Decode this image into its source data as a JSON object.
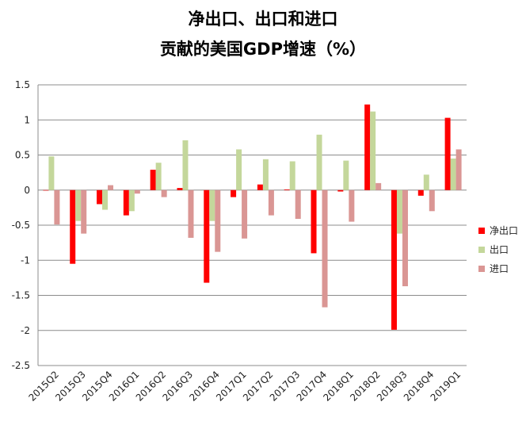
{
  "chart_data": {
    "type": "bar",
    "title": "净出口、出口和进口",
    "subtitle": "贡献的美国GDP增速（%）",
    "xlabel": "",
    "ylabel": "",
    "categories": [
      "2015Q2",
      "2015Q3",
      "2015Q4",
      "2016Q1",
      "2016Q2",
      "2016Q3",
      "2016Q4",
      "2017Q1",
      "2017Q2",
      "2017Q3",
      "2017Q4",
      "2018Q1",
      "2018Q2",
      "2018Q3",
      "2018Q4",
      "2019Q1"
    ],
    "ylim": [
      -2.5,
      1.5
    ],
    "yticks": [
      1.5,
      1,
      0.5,
      0,
      -0.5,
      -1,
      -1.5,
      -2,
      -2.5
    ],
    "ytick_labels": [
      "1.5",
      "1",
      "0.5",
      "0",
      "-0.5",
      "-1",
      "-1.5",
      "-2",
      "-2.5"
    ],
    "grid": true,
    "legend_position": "right",
    "series": [
      {
        "name": "净出口",
        "color": "#ff0000",
        "values": [
          0.0,
          -1.05,
          -0.2,
          -0.36,
          0.29,
          0.03,
          -1.32,
          -0.1,
          0.08,
          0.01,
          -0.9,
          -0.02,
          1.22,
          -1.99,
          -0.08,
          1.03
        ]
      },
      {
        "name": "出口",
        "color": "#c4d79b",
        "values": [
          0.48,
          -0.44,
          -0.28,
          -0.3,
          0.39,
          0.71,
          -0.44,
          0.58,
          0.44,
          0.41,
          0.79,
          0.42,
          1.12,
          -0.62,
          0.22,
          0.45
        ]
      },
      {
        "name": "进口",
        "color": "#da9694",
        "values": [
          -0.49,
          -0.62,
          0.07,
          -0.05,
          -0.1,
          -0.68,
          -0.88,
          -0.69,
          -0.36,
          -0.41,
          -1.67,
          -0.45,
          0.1,
          -1.37,
          -0.3,
          0.58
        ]
      }
    ]
  }
}
